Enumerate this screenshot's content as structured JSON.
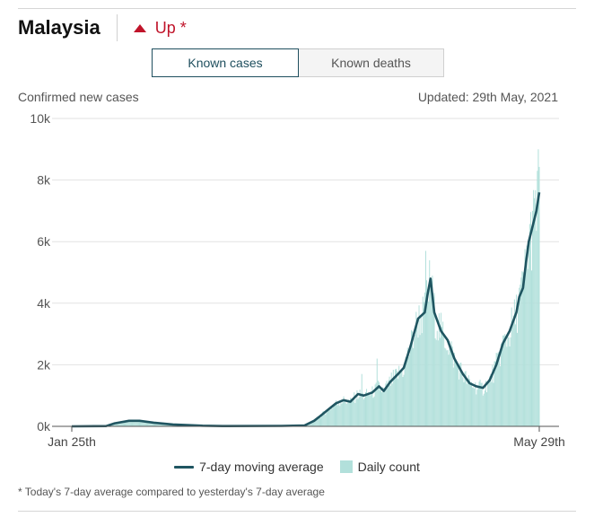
{
  "header": {
    "country": "Malaysia",
    "trend_label": "Up *",
    "trend_color": "#c0142a"
  },
  "tabs": [
    {
      "label": "Known cases",
      "active": true
    },
    {
      "label": "Known deaths",
      "active": false
    }
  ],
  "meta": {
    "subtitle": "Confirmed new cases",
    "updated": "Updated: 29th May, 2021"
  },
  "legend": {
    "line_label": "7-day moving average",
    "bar_label": "Daily count"
  },
  "footnote": "* Today's 7-day average compared to yesterday's 7-day average",
  "chart_data": {
    "type": "bar",
    "title": "Confirmed new cases",
    "x_start": "2020-01-25",
    "x_end": "2021-05-29",
    "x_tick_labels": [
      "Jan 25th",
      "May 29th"
    ],
    "y_ticks": [
      0,
      2000,
      4000,
      6000,
      8000,
      10000
    ],
    "y_tick_labels": [
      "0k",
      "2k",
      "4k",
      "6k",
      "8k",
      "10k"
    ],
    "ylim": [
      0,
      10000
    ],
    "grid": true,
    "colors": {
      "bars": "#b2e0db",
      "line": "#1f5561",
      "grid": "#e2e2e2",
      "axis": "#555555"
    },
    "series": [
      {
        "name": "7-day moving average",
        "kind": "line",
        "points": [
          [
            "2020-01-25",
            0
          ],
          [
            "2020-03-01",
            10
          ],
          [
            "2020-03-10",
            100
          ],
          [
            "2020-03-25",
            180
          ],
          [
            "2020-04-05",
            180
          ],
          [
            "2020-04-20",
            120
          ],
          [
            "2020-05-10",
            60
          ],
          [
            "2020-06-10",
            20
          ],
          [
            "2020-07-01",
            10
          ],
          [
            "2020-09-01",
            15
          ],
          [
            "2020-09-25",
            30
          ],
          [
            "2020-10-05",
            180
          ],
          [
            "2020-10-10",
            300
          ],
          [
            "2020-10-20",
            550
          ],
          [
            "2020-10-28",
            750
          ],
          [
            "2020-11-05",
            850
          ],
          [
            "2020-11-12",
            800
          ],
          [
            "2020-11-20",
            1050
          ],
          [
            "2020-11-26",
            1000
          ],
          [
            "2020-12-05",
            1100
          ],
          [
            "2020-12-12",
            1300
          ],
          [
            "2020-12-17",
            1150
          ],
          [
            "2020-12-24",
            1450
          ],
          [
            "2021-01-01",
            1700
          ],
          [
            "2021-01-07",
            1900
          ],
          [
            "2021-01-14",
            2600
          ],
          [
            "2021-01-22",
            3500
          ],
          [
            "2021-01-29",
            3700
          ],
          [
            "2021-02-01",
            4300
          ],
          [
            "2021-02-04",
            4800
          ],
          [
            "2021-02-08",
            3700
          ],
          [
            "2021-02-15",
            3100
          ],
          [
            "2021-02-22",
            2800
          ],
          [
            "2021-03-01",
            2200
          ],
          [
            "2021-03-10",
            1700
          ],
          [
            "2021-03-17",
            1400
          ],
          [
            "2021-03-24",
            1300
          ],
          [
            "2021-03-31",
            1250
          ],
          [
            "2021-04-07",
            1500
          ],
          [
            "2021-04-14",
            2000
          ],
          [
            "2021-04-21",
            2700
          ],
          [
            "2021-04-28",
            3100
          ],
          [
            "2021-05-05",
            3700
          ],
          [
            "2021-05-08",
            4200
          ],
          [
            "2021-05-12",
            4500
          ],
          [
            "2021-05-15",
            5300
          ],
          [
            "2021-05-18",
            6000
          ],
          [
            "2021-05-22",
            6500
          ],
          [
            "2021-05-26",
            7000
          ],
          [
            "2021-05-29",
            7600
          ]
        ]
      },
      {
        "name": "Daily count",
        "kind": "bar",
        "spikes": [
          [
            "2021-01-30",
            5700
          ],
          [
            "2021-05-28",
            9000
          ],
          [
            "2021-05-27",
            8300
          ],
          [
            "2021-05-22",
            7000
          ],
          [
            "2021-05-13",
            4700
          ],
          [
            "2021-05-08",
            4500
          ],
          [
            "2020-12-10",
            2200
          ],
          [
            "2020-11-24",
            1700
          ],
          [
            "2021-03-31",
            1000
          ]
        ]
      }
    ]
  }
}
